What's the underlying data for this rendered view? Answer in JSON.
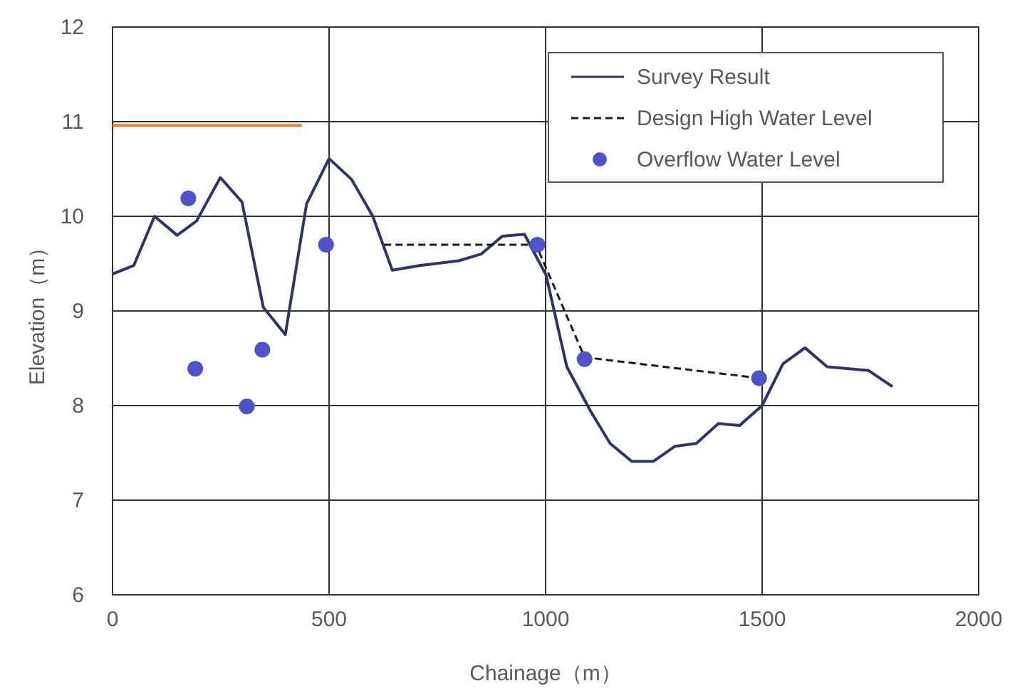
{
  "chart_data": {
    "type": "line",
    "xlabel": "Chainage（m）",
    "ylabel": "Elevation（m）",
    "xlim": [
      0,
      2000
    ],
    "ylim": [
      6,
      12
    ],
    "xticks": [
      0,
      500,
      1000,
      1500,
      2000
    ],
    "yticks": [
      6,
      7,
      8,
      9,
      10,
      11,
      12
    ],
    "grid": true,
    "legend": "top right",
    "series": [
      {
        "name": "Survey Result",
        "color": "#2f3366",
        "line_style": "solid",
        "marker": "none",
        "x": [
          0,
          49,
          97,
          149,
          194,
          249,
          299,
          348,
          399,
          448,
          500,
          552,
          601,
          646,
          709,
          799,
          851,
          900,
          951,
          1001,
          1049,
          1104,
          1149,
          1199,
          1249,
          1299,
          1348,
          1399,
          1448,
          1500,
          1548,
          1599,
          1650,
          1746,
          1801
        ],
        "values": [
          9.39,
          9.48,
          10.0,
          9.8,
          9.95,
          10.41,
          10.15,
          9.04,
          8.75,
          10.13,
          10.61,
          10.39,
          10.0,
          9.43,
          9.48,
          9.53,
          9.6,
          9.79,
          9.81,
          9.38,
          8.41,
          7.94,
          7.6,
          7.41,
          7.41,
          7.57,
          7.6,
          7.81,
          7.79,
          8.0,
          8.44,
          8.61,
          8.41,
          8.37,
          8.2
        ]
      },
      {
        "name": "Design High Water Level",
        "color": "#1a1a1a",
        "line_style": "dashed",
        "marker": "none",
        "x": [
          627,
          978,
          1090,
          1493
        ],
        "values": [
          9.7,
          9.7,
          8.51,
          8.29
        ]
      },
      {
        "name": "Overflow Water Level",
        "type": "scatter",
        "color": "#5050c8",
        "marker": "circle",
        "x": [
          175,
          191,
          310,
          346,
          493,
          981,
          1090,
          1493
        ],
        "values": [
          10.19,
          8.39,
          7.99,
          8.59,
          9.7,
          9.7,
          8.49,
          8.29
        ]
      },
      {
        "color": "#ed7d31",
        "line_style": "solid",
        "marker": "none",
        "x": [
          0,
          437
        ],
        "values": [
          10.96,
          10.96
        ]
      }
    ]
  }
}
